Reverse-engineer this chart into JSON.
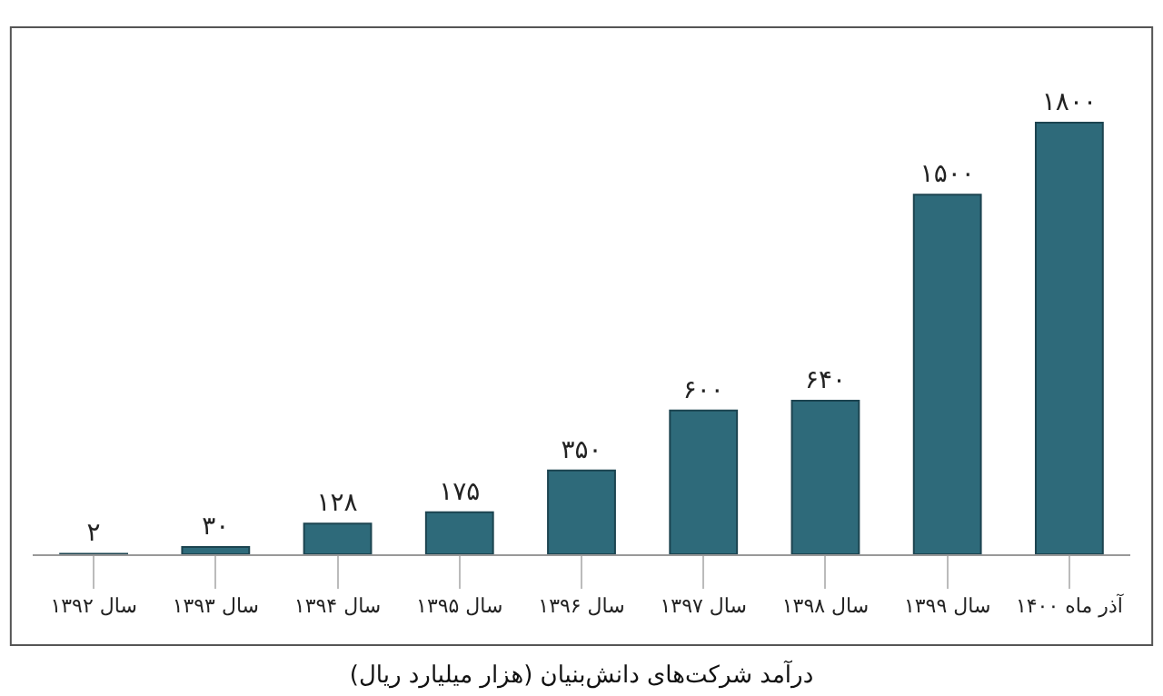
{
  "chart_data": {
    "type": "bar",
    "title": "درآمد شرکت‌های دانش‌بنیان (هزار میلیارد ریال)",
    "categories": [
      "سال ۱۳۹۲",
      "سال ۱۳۹۳",
      "سال ۱۳۹۴",
      "سال ۱۳۹۵",
      "سال ۱۳۹۶",
      "سال ۱۳۹۷",
      "سال ۱۳۹۸",
      "سال ۱۳۹۹",
      "آذر ماه ۱۴۰۰"
    ],
    "values": [
      2,
      30,
      128,
      175,
      350,
      600,
      640,
      1500,
      1800
    ],
    "value_labels": [
      "۲",
      "۳۰",
      "۱۲۸",
      "۱۷۵",
      "۳۵۰",
      "۶۰۰",
      "۶۴۰",
      "۱۵۰۰",
      "۱۸۰۰"
    ],
    "color": "#2e6a7a",
    "grid": false
  }
}
